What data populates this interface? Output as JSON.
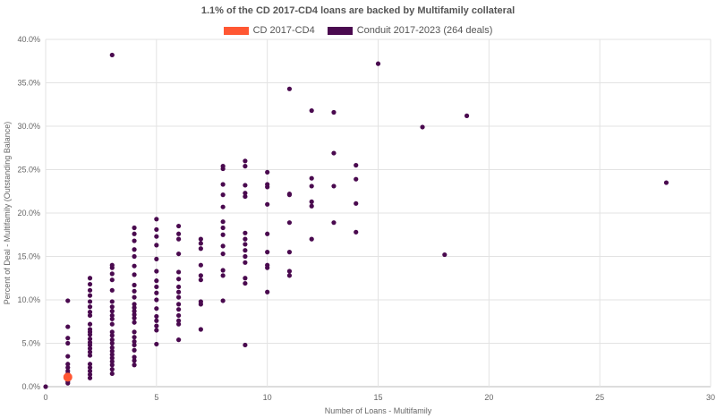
{
  "chart_data": {
    "type": "scatter",
    "title": "1.1% of the CD 2017-CD4 loans are backed by Multifamily collateral",
    "xlabel": "Number of Loans - Multifamily",
    "ylabel": "Percent of Deal - Multifamily (Outstanding Balance)",
    "xlim": [
      0,
      30
    ],
    "ylim": [
      0,
      40
    ],
    "xticks": [
      "0",
      "5",
      "10",
      "15",
      "20",
      "25",
      "30"
    ],
    "yticks": [
      "0.0%",
      "5.0%",
      "10.0%",
      "15.0%",
      "20.0%",
      "25.0%",
      "30.0%",
      "35.0%",
      "40.0%"
    ],
    "grid": true,
    "legend_position": "top-center",
    "series": [
      {
        "name": "CD 2017-CD4",
        "color": "#ff5733",
        "points": [
          [
            1,
            1.1
          ]
        ]
      },
      {
        "name": "Conduit 2017-2023 (264 deals)",
        "color": "#4a0a4f",
        "points": [
          [
            0,
            0.0
          ],
          [
            1,
            0.4
          ],
          [
            1,
            0.6
          ],
          [
            1,
            0.9
          ],
          [
            1,
            1.2
          ],
          [
            1,
            1.5
          ],
          [
            1,
            1.8
          ],
          [
            1,
            2.2
          ],
          [
            1,
            2.6
          ],
          [
            1,
            3.5
          ],
          [
            1,
            5.0
          ],
          [
            1,
            5.6
          ],
          [
            1,
            6.9
          ],
          [
            1,
            9.9
          ],
          [
            2,
            1.0
          ],
          [
            2,
            1.4
          ],
          [
            2,
            1.8
          ],
          [
            2,
            2.2
          ],
          [
            2,
            2.6
          ],
          [
            2,
            3.6
          ],
          [
            2,
            4.0
          ],
          [
            2,
            4.4
          ],
          [
            2,
            4.8
          ],
          [
            2,
            5.1
          ],
          [
            2,
            5.5
          ],
          [
            2,
            6.0
          ],
          [
            2,
            6.3
          ],
          [
            2,
            6.6
          ],
          [
            2,
            7.2
          ],
          [
            2,
            8.2
          ],
          [
            2,
            8.6
          ],
          [
            2,
            9.2
          ],
          [
            2,
            9.8
          ],
          [
            2,
            10.5
          ],
          [
            2,
            11.1
          ],
          [
            2,
            11.8
          ],
          [
            2,
            12.5
          ],
          [
            3,
            1.5
          ],
          [
            3,
            2.0
          ],
          [
            3,
            2.5
          ],
          [
            3,
            2.9
          ],
          [
            3,
            3.3
          ],
          [
            3,
            3.7
          ],
          [
            3,
            4.1
          ],
          [
            3,
            4.5
          ],
          [
            3,
            5.0
          ],
          [
            3,
            5.4
          ],
          [
            3,
            5.9
          ],
          [
            3,
            6.3
          ],
          [
            3,
            7.2
          ],
          [
            3,
            7.8
          ],
          [
            3,
            8.2
          ],
          [
            3,
            8.7
          ],
          [
            3,
            9.2
          ],
          [
            3,
            9.8
          ],
          [
            3,
            11.1
          ],
          [
            3,
            12.3
          ],
          [
            3,
            13.0
          ],
          [
            3,
            13.7
          ],
          [
            3,
            14.0
          ],
          [
            3,
            38.2
          ],
          [
            4,
            2.5
          ],
          [
            4,
            3.0
          ],
          [
            4,
            3.4
          ],
          [
            4,
            4.2
          ],
          [
            4,
            4.8
          ],
          [
            4,
            5.2
          ],
          [
            4,
            5.7
          ],
          [
            4,
            6.3
          ],
          [
            4,
            7.4
          ],
          [
            4,
            7.9
          ],
          [
            4,
            8.3
          ],
          [
            4,
            8.7
          ],
          [
            4,
            9.1
          ],
          [
            4,
            9.5
          ],
          [
            4,
            10.3
          ],
          [
            4,
            11.0
          ],
          [
            4,
            11.7
          ],
          [
            4,
            12.9
          ],
          [
            4,
            13.9
          ],
          [
            4,
            15.0
          ],
          [
            4,
            15.8
          ],
          [
            4,
            16.8
          ],
          [
            4,
            17.6
          ],
          [
            4,
            18.3
          ],
          [
            5,
            4.9
          ],
          [
            5,
            6.5
          ],
          [
            5,
            7.0
          ],
          [
            5,
            7.6
          ],
          [
            5,
            8.1
          ],
          [
            5,
            9.0
          ],
          [
            5,
            10.0
          ],
          [
            5,
            10.8
          ],
          [
            5,
            11.5
          ],
          [
            5,
            12.2
          ],
          [
            5,
            13.3
          ],
          [
            5,
            14.7
          ],
          [
            5,
            16.3
          ],
          [
            5,
            17.3
          ],
          [
            5,
            18.1
          ],
          [
            5,
            19.3
          ],
          [
            6,
            5.4
          ],
          [
            6,
            7.2
          ],
          [
            6,
            7.6
          ],
          [
            6,
            8.2
          ],
          [
            6,
            8.9
          ],
          [
            6,
            9.5
          ],
          [
            6,
            10.3
          ],
          [
            6,
            10.9
          ],
          [
            6,
            11.5
          ],
          [
            6,
            12.4
          ],
          [
            6,
            13.2
          ],
          [
            6,
            15.3
          ],
          [
            6,
            17.0
          ],
          [
            6,
            17.6
          ],
          [
            6,
            18.5
          ],
          [
            7,
            6.6
          ],
          [
            7,
            9.5
          ],
          [
            7,
            9.8
          ],
          [
            7,
            12.3
          ],
          [
            7,
            12.8
          ],
          [
            7,
            14.0
          ],
          [
            7,
            15.9
          ],
          [
            7,
            16.5
          ],
          [
            7,
            17.0
          ],
          [
            8,
            9.9
          ],
          [
            8,
            12.8
          ],
          [
            8,
            13.4
          ],
          [
            8,
            15.3
          ],
          [
            8,
            16.2
          ],
          [
            8,
            17.5
          ],
          [
            8,
            18.3
          ],
          [
            8,
            19.0
          ],
          [
            8,
            20.7
          ],
          [
            8,
            22.1
          ],
          [
            8,
            23.3
          ],
          [
            8,
            25.1
          ],
          [
            8,
            25.4
          ],
          [
            9,
            4.8
          ],
          [
            9,
            11.9
          ],
          [
            9,
            12.5
          ],
          [
            9,
            14.3
          ],
          [
            9,
            15.0
          ],
          [
            9,
            15.7
          ],
          [
            9,
            16.4
          ],
          [
            9,
            17.0
          ],
          [
            9,
            17.7
          ],
          [
            9,
            21.9
          ],
          [
            9,
            22.3
          ],
          [
            9,
            23.2
          ],
          [
            9,
            25.4
          ],
          [
            9,
            26.0
          ],
          [
            10,
            10.9
          ],
          [
            10,
            13.7
          ],
          [
            10,
            14.0
          ],
          [
            10,
            15.5
          ],
          [
            10,
            17.6
          ],
          [
            10,
            21.0
          ],
          [
            10,
            23.0
          ],
          [
            10,
            23.3
          ],
          [
            10,
            24.7
          ],
          [
            11,
            12.8
          ],
          [
            11,
            13.3
          ],
          [
            11,
            15.5
          ],
          [
            11,
            18.9
          ],
          [
            11,
            22.1
          ],
          [
            11,
            22.2
          ],
          [
            11,
            34.3
          ],
          [
            12,
            17.0
          ],
          [
            12,
            20.8
          ],
          [
            12,
            21.3
          ],
          [
            12,
            23.1
          ],
          [
            12,
            24.0
          ],
          [
            12,
            31.8
          ],
          [
            13,
            18.9
          ],
          [
            13,
            23.1
          ],
          [
            13,
            26.9
          ],
          [
            13,
            31.6
          ],
          [
            14,
            17.8
          ],
          [
            14,
            21.1
          ],
          [
            14,
            23.9
          ],
          [
            14,
            25.5
          ],
          [
            15,
            37.2
          ],
          [
            17,
            29.9
          ],
          [
            18,
            15.2
          ],
          [
            19,
            31.2
          ],
          [
            28,
            23.5
          ]
        ]
      }
    ]
  }
}
